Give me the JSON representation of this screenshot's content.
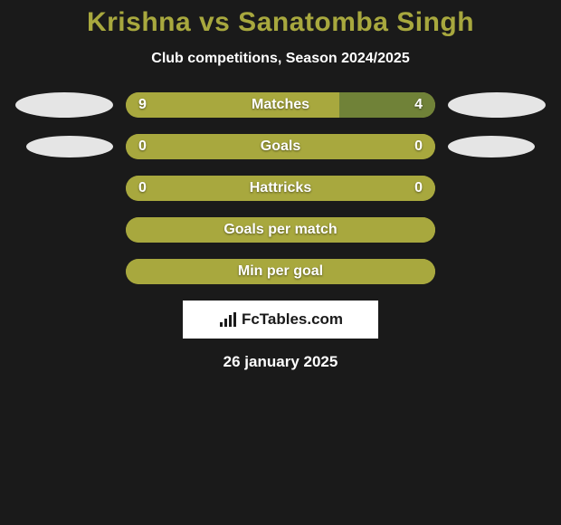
{
  "title": "Krishna vs Sanatomba Singh",
  "subtitle": "Club competitions, Season 2024/2025",
  "brand": "FcTables.com",
  "date": "26 january 2025",
  "colors": {
    "background": "#1a1a1a",
    "accent": "#a8a83e",
    "bar_primary": "#a8a83e",
    "bar_secondary": "#708238",
    "placeholder": "#e5e5e5",
    "text": "#ffffff"
  },
  "bars": [
    {
      "label": "Matches",
      "left_value": "9",
      "right_value": "4",
      "left_pct": 69,
      "right_pct": 31,
      "left_color": "#a8a83e",
      "right_color": "#708238",
      "show_left_placeholder": true,
      "show_right_placeholder": true,
      "placeholder_size": "normal"
    },
    {
      "label": "Goals",
      "left_value": "0",
      "right_value": "0",
      "left_pct": 50,
      "right_pct": 50,
      "left_color": "#a8a83e",
      "right_color": "#a8a83e",
      "show_left_placeholder": true,
      "show_right_placeholder": true,
      "placeholder_size": "small"
    },
    {
      "label": "Hattricks",
      "left_value": "0",
      "right_value": "0",
      "left_pct": 50,
      "right_pct": 50,
      "left_color": "#a8a83e",
      "right_color": "#a8a83e",
      "show_left_placeholder": false,
      "show_right_placeholder": false
    },
    {
      "label": "Goals per match",
      "left_value": "",
      "right_value": "",
      "left_pct": 100,
      "right_pct": 0,
      "left_color": "#a8a83e",
      "right_color": "#a8a83e",
      "show_left_placeholder": false,
      "show_right_placeholder": false
    },
    {
      "label": "Min per goal",
      "left_value": "",
      "right_value": "",
      "left_pct": 100,
      "right_pct": 0,
      "left_color": "#a8a83e",
      "right_color": "#a8a83e",
      "show_left_placeholder": false,
      "show_right_placeholder": false
    }
  ]
}
